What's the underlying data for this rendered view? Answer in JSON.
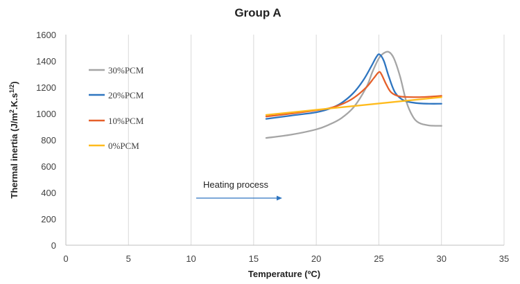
{
  "chart_data": {
    "type": "line",
    "title": "Group A",
    "xlabel": "Temperature (ºC)",
    "ylabel": "Thermal inertia (J/m²K.s¹/²)",
    "xlim": [
      0,
      35
    ],
    "ylim": [
      0,
      1600
    ],
    "x_ticks": [
      "0",
      "5",
      "10",
      "15",
      "20",
      "25",
      "30",
      "35"
    ],
    "y_ticks": [
      "0",
      "200",
      "400",
      "600",
      "800",
      "1000",
      "1200",
      "1400",
      "1600"
    ],
    "grid": "vertical",
    "legend_position": "left",
    "annotation": "Heating process",
    "series": [
      {
        "name": "30%PCM",
        "color": "#a5a5a5",
        "points": [
          [
            16,
            815
          ],
          [
            18,
            840
          ],
          [
            20,
            880
          ],
          [
            21,
            915
          ],
          [
            22,
            965
          ],
          [
            23,
            1050
          ],
          [
            24,
            1200
          ],
          [
            24.5,
            1320
          ],
          [
            25,
            1420
          ],
          [
            25.4,
            1460
          ],
          [
            25.8,
            1468
          ],
          [
            26.2,
            1420
          ],
          [
            26.7,
            1280
          ],
          [
            27.2,
            1090
          ],
          [
            27.7,
            980
          ],
          [
            28.2,
            930
          ],
          [
            29,
            910
          ],
          [
            30,
            907
          ]
        ]
      },
      {
        "name": "20%PCM",
        "color": "#2e75c0",
        "points": [
          [
            16,
            960
          ],
          [
            18,
            985
          ],
          [
            20,
            1010
          ],
          [
            21,
            1035
          ],
          [
            22,
            1080
          ],
          [
            23,
            1160
          ],
          [
            23.8,
            1260
          ],
          [
            24.4,
            1360
          ],
          [
            24.8,
            1430
          ],
          [
            25.05,
            1450
          ],
          [
            25.4,
            1400
          ],
          [
            25.8,
            1280
          ],
          [
            26.3,
            1160
          ],
          [
            27,
            1100
          ],
          [
            28,
            1080
          ],
          [
            29,
            1075
          ],
          [
            30,
            1075
          ]
        ]
      },
      {
        "name": "10%PCM",
        "color": "#e5602a",
        "points": [
          [
            16,
            978
          ],
          [
            18,
            1000
          ],
          [
            20,
            1025
          ],
          [
            21,
            1040
          ],
          [
            22,
            1070
          ],
          [
            23,
            1120
          ],
          [
            24,
            1200
          ],
          [
            24.6,
            1270
          ],
          [
            25,
            1315
          ],
          [
            25.2,
            1300
          ],
          [
            25.6,
            1220
          ],
          [
            26,
            1160
          ],
          [
            26.7,
            1130
          ],
          [
            28,
            1125
          ],
          [
            29,
            1128
          ],
          [
            30,
            1135
          ]
        ]
      },
      {
        "name": "0%PCM",
        "color": "#ffbb1c",
        "points": [
          [
            16,
            990
          ],
          [
            30,
            1125
          ]
        ]
      }
    ]
  }
}
